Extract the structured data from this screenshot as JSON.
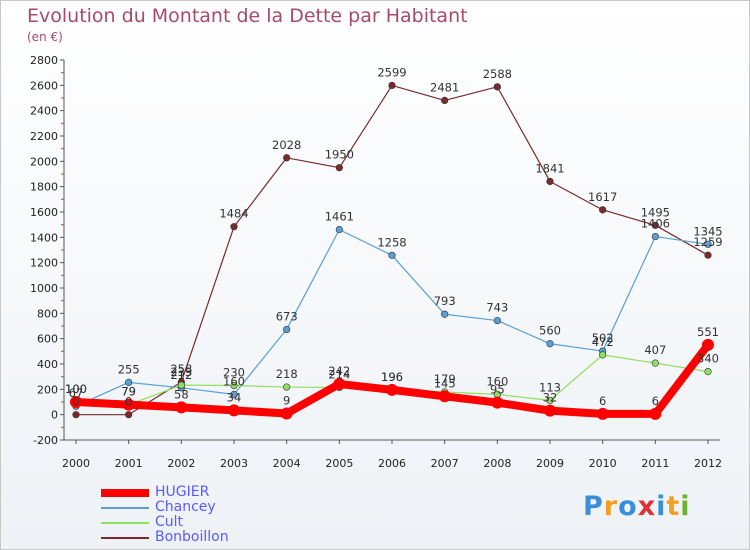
{
  "title": "Evolution du Montant de la Dette par Habitant",
  "subtitle": "(en €)",
  "logo": {
    "text": "Proxiti",
    "letters": [
      "P",
      "r",
      "o",
      "x",
      "i",
      "t",
      "i"
    ],
    "colors": [
      "#3a8fd8",
      "#f0a020",
      "#3a8fd8",
      "#e03030",
      "#3a8fd8",
      "#f0a020",
      "#70b030"
    ]
  },
  "chart_data": {
    "type": "line",
    "title": "Evolution du Montant de la Dette par Habitant",
    "ylabel": "(en €)",
    "ylim": [
      -200,
      2800
    ],
    "yticks": [
      -200,
      0,
      200,
      400,
      600,
      800,
      1000,
      1200,
      1400,
      1600,
      1800,
      2000,
      2200,
      2400,
      2600,
      2800
    ],
    "grid": false,
    "legend": "bottom-left",
    "categories": [
      "2000",
      "2001",
      "2002",
      "2003",
      "2004",
      "2005",
      "2006",
      "2007",
      "2008",
      "2009",
      "2010",
      "2011",
      "2012"
    ],
    "series": [
      {
        "name": "HUGIER",
        "color": "#ff0000",
        "width": 8,
        "marker": 6,
        "values": [
          100,
          79,
          58,
          34,
          9,
          242,
          196,
          145,
          95,
          32,
          6,
          6,
          551
        ]
      },
      {
        "name": "Chancey",
        "color": "#5a9fd4",
        "width": 1.2,
        "marker": 3.3,
        "values": [
          67,
          255,
          212,
          160,
          673,
          1461,
          1258,
          793,
          743,
          560,
          502,
          1406,
          1345
        ]
      },
      {
        "name": "Cult",
        "color": "#90e060",
        "width": 1.2,
        "marker": 3.3,
        "values": [
          100,
          79,
          233,
          230,
          218,
          214,
          196,
          179,
          160,
          113,
          472,
          407,
          340
        ]
      },
      {
        "name": "Bonboillon",
        "color": "#7a2a2a",
        "width": 1.2,
        "marker": 3.3,
        "values": [
          0,
          0,
          258,
          1484,
          2028,
          1950,
          2599,
          2481,
          2588,
          1841,
          1617,
          1495,
          1259
        ]
      }
    ]
  }
}
